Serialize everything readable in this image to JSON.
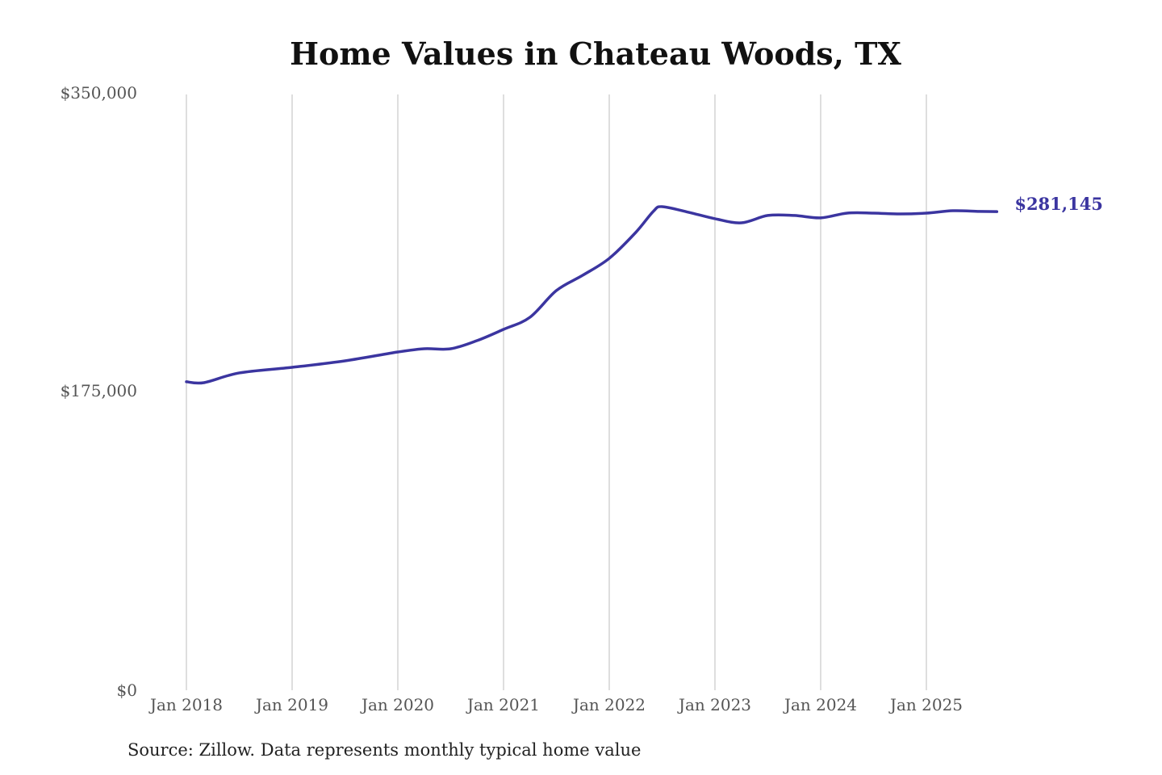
{
  "chart_data": {
    "type": "line",
    "title": "Home Values in Chateau Woods, TX",
    "source": "Source: Zillow. Data represents monthly typical home value",
    "xlabel": "",
    "ylabel": "",
    "ylim": [
      0,
      350000
    ],
    "y_ticks": [
      0,
      175000,
      350000
    ],
    "y_tick_labels": [
      "$0",
      "$175,000",
      "$350,000"
    ],
    "x_ticks": [
      "2018-01",
      "2019-01",
      "2020-01",
      "2021-01",
      "2022-01",
      "2023-01",
      "2024-01",
      "2025-01"
    ],
    "x_tick_labels": [
      "Jan 2018",
      "Jan 2019",
      "Jan 2020",
      "Jan 2021",
      "Jan 2022",
      "Jan 2023",
      "Jan 2024",
      "Jan 2025"
    ],
    "grid": "vertical",
    "line_color": "#3b35a0",
    "end_label": "$281,145",
    "series": [
      {
        "x": [
          "2018-01",
          "2018-03",
          "2018-07",
          "2019-01",
          "2019-07",
          "2020-01",
          "2020-04",
          "2020-07",
          "2020-10",
          "2021-01",
          "2021-04",
          "2021-07",
          "2021-10",
          "2022-01",
          "2022-04",
          "2022-06",
          "2022-07",
          "2022-10",
          "2023-01",
          "2023-04",
          "2023-07",
          "2023-10",
          "2024-01",
          "2024-04",
          "2024-07",
          "2024-10",
          "2025-01",
          "2025-04",
          "2025-07",
          "2025-09"
        ],
        "values": [
          181200,
          180700,
          186400,
          189700,
          193500,
          198700,
          200600,
          200600,
          205400,
          212000,
          219100,
          234800,
          243800,
          253700,
          268900,
          281300,
          284100,
          280800,
          277000,
          274600,
          278900,
          278900,
          277500,
          280300,
          280300,
          279800,
          280300,
          281700,
          281300,
          281145
        ]
      }
    ]
  }
}
